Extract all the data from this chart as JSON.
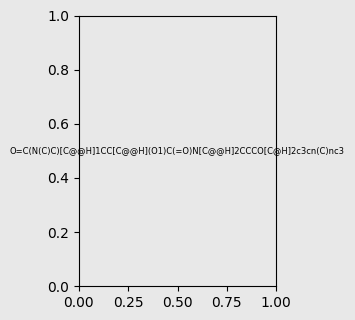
{
  "smiles": "O=C(N(C)C)[C@@H]1CC[C@@H](O1)C(=O)N[C@@H]2CCCO[C@H]2c3cn(C)nc3",
  "image_size": 300,
  "background_color": "#e8e8e8",
  "title": ""
}
